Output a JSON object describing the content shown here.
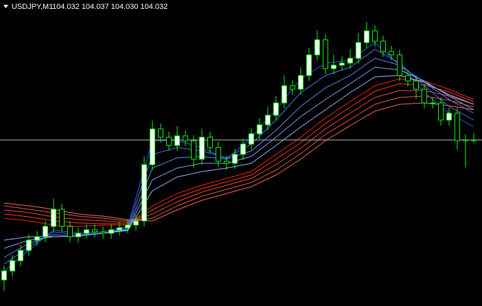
{
  "chart_data": {
    "type": "candlestick",
    "symbol": "USDJPY,M1",
    "ohlc_label": "104.032 104.037 104.030 104.032",
    "ylim": [
      103.911,
      104.134
    ],
    "background": "#000000",
    "up_color": "#ffffff",
    "down_color": "#000000",
    "wick_color": "#00ff00",
    "price_line_color": "#c0c0c0",
    "open": [
      103.93,
      103.9365,
      103.944,
      103.9515,
      103.959,
      103.9615,
      103.969,
      103.9815,
      103.969,
      103.9615,
      103.964,
      103.9665,
      103.965,
      103.964,
      103.9665,
      103.968,
      103.97,
      103.973,
      104.014,
      104.04,
      104.034,
      104.028,
      104.035,
      104.0315,
      104.018,
      104.034,
      104.0265,
      104.0165,
      104.015,
      104.0215,
      104.029,
      104.0365,
      104.043,
      104.05,
      104.059,
      104.0715,
      104.069,
      104.079,
      104.094,
      104.105,
      104.084,
      104.0865,
      104.088,
      104.0915,
      104.103,
      104.1115,
      104.104,
      104.0965,
      104.094,
      104.079,
      104.075,
      104.069,
      104.059,
      104.059,
      104.0465,
      104.0515,
      104.0315,
      104.032
    ],
    "high": [
      103.9405,
      103.948,
      103.9555,
      103.963,
      103.9655,
      103.973,
      103.989,
      103.9855,
      103.973,
      103.968,
      103.9705,
      103.9705,
      103.969,
      103.9705,
      103.972,
      103.974,
      103.977,
      104.02,
      104.046,
      104.044,
      104.038,
      104.042,
      104.039,
      104.0355,
      104.04,
      104.038,
      104.0305,
      104.0205,
      104.0255,
      104.033,
      104.0405,
      104.048,
      104.056,
      104.064,
      104.079,
      104.0755,
      104.085,
      104.099,
      104.112,
      104.109,
      104.094,
      104.093,
      104.098,
      104.11,
      104.118,
      104.1155,
      104.108,
      104.1005,
      104.098,
      104.083,
      104.079,
      104.073,
      104.063,
      104.063,
      104.0555,
      104.0555,
      104.036,
      104.037
    ],
    "low": [
      103.922,
      103.9325,
      103.94,
      103.9475,
      103.955,
      103.9575,
      103.965,
      103.965,
      103.9575,
      103.9575,
      103.96,
      103.961,
      103.96,
      103.96,
      103.9625,
      103.964,
      103.966,
      103.969,
      104.01,
      104.03,
      104.024,
      104.024,
      104.0275,
      104.012,
      104.014,
      104.0225,
      104.0125,
      104.01,
      104.011,
      104.0175,
      104.025,
      104.0325,
      104.039,
      104.046,
      104.055,
      104.065,
      104.065,
      104.075,
      104.09,
      104.08,
      104.08,
      104.0825,
      104.084,
      104.0875,
      104.099,
      104.1,
      104.0925,
      104.09,
      104.075,
      104.071,
      104.062,
      104.055,
      104.055,
      104.0425,
      104.0425,
      104.025,
      104.012,
      104.03
    ],
    "close": [
      103.9365,
      103.944,
      103.9515,
      103.959,
      103.9615,
      103.969,
      103.9815,
      103.969,
      103.9615,
      103.964,
      103.9665,
      103.965,
      103.964,
      103.9665,
      103.968,
      103.97,
      103.973,
      104.014,
      104.04,
      104.034,
      104.028,
      104.035,
      104.0315,
      104.018,
      104.034,
      104.0265,
      104.0165,
      104.015,
      104.0215,
      104.029,
      104.0365,
      104.043,
      104.05,
      104.059,
      104.0715,
      104.069,
      104.079,
      104.094,
      104.105,
      104.084,
      104.0865,
      104.088,
      104.0915,
      104.103,
      104.1115,
      104.104,
      104.0965,
      104.094,
      104.079,
      104.075,
      104.069,
      104.059,
      104.059,
      104.0465,
      104.0515,
      104.0315,
      104.032,
      104.032
    ],
    "series": [
      {
        "color": "#ff2200",
        "values": [
          103.975,
          103.973,
          103.97,
          103.969,
          103.97,
          103.97,
          103.984,
          103.993,
          103.999,
          104.004,
          104.009,
          104.0215,
          104.034,
          104.048,
          104.06,
          104.0715,
          104.0765,
          104.075,
          104.069,
          104.0615
        ]
      },
      {
        "color": "#ff3a20",
        "values": [
          103.978,
          103.976,
          103.973,
          103.9715,
          103.971,
          103.971,
          103.981,
          103.99,
          103.9965,
          104.0015,
          104.0065,
          104.018,
          104.03,
          104.044,
          104.056,
          104.0675,
          104.073,
          104.072,
          104.067,
          104.06
        ]
      },
      {
        "color": "#f04a38",
        "values": [
          103.981,
          103.979,
          103.976,
          103.974,
          103.973,
          103.972,
          103.978,
          103.987,
          103.994,
          103.999,
          104.004,
          104.014,
          104.026,
          104.04,
          104.0515,
          104.063,
          104.068,
          104.068,
          104.064,
          104.058
        ]
      },
      {
        "color": "#e85a48",
        "values": [
          103.984,
          103.9815,
          103.979,
          103.9765,
          103.975,
          103.973,
          103.975,
          103.984,
          103.991,
          103.996,
          104.001,
          104.01,
          104.022,
          104.036,
          104.047,
          104.058,
          104.063,
          104.064,
          104.061,
          104.056
        ]
      },
      {
        "color": "#ff6a50",
        "values": [
          103.986,
          103.984,
          103.9815,
          103.978,
          103.9765,
          103.974,
          103.973,
          103.981,
          103.988,
          103.993,
          103.998,
          104.0065,
          104.018,
          104.0315,
          104.0425,
          104.053,
          104.058,
          104.059,
          104.057,
          104.054
        ]
      },
      {
        "color": "#2f5cff",
        "values": [
          103.9365,
          103.9515,
          103.9665,
          103.964,
          103.965,
          103.969,
          104.0315,
          104.0315,
          104.0265,
          104.018,
          104.034,
          104.054,
          104.0765,
          104.088,
          104.09,
          104.103,
          104.0865,
          104.0665,
          104.0515,
          104.0415
        ]
      },
      {
        "color": "#4a74ff",
        "values": [
          103.9415,
          103.954,
          103.965,
          103.963,
          103.964,
          103.968,
          104.0215,
          104.0265,
          104.024,
          104.019,
          104.029,
          104.0465,
          104.0665,
          104.079,
          104.085,
          104.098,
          104.088,
          104.0715,
          104.0565,
          104.0465
        ]
      },
      {
        "color": "#638cff",
        "values": [
          103.9465,
          103.9565,
          103.963,
          103.962,
          103.964,
          103.967,
          104.0115,
          104.019,
          104.02,
          104.018,
          104.024,
          104.039,
          104.0565,
          104.07,
          104.079,
          104.0915,
          104.0865,
          104.074,
          104.0615,
          104.0515
        ]
      },
      {
        "color": "#7fa2ff",
        "values": [
          103.953,
          103.959,
          103.9615,
          103.962,
          103.964,
          103.9665,
          104.003,
          104.0115,
          104.015,
          104.015,
          104.02,
          104.034,
          104.049,
          104.0615,
          104.073,
          104.085,
          104.083,
          104.075,
          104.064,
          104.054
        ]
      },
      {
        "color": "#9cb8ff",
        "values": [
          103.959,
          103.9615,
          103.9615,
          103.962,
          103.964,
          103.966,
          103.995,
          104.005,
          104.009,
          104.0115,
          104.015,
          104.028,
          104.0415,
          104.054,
          104.0665,
          104.078,
          104.079,
          104.074,
          104.065,
          104.058
        ]
      }
    ]
  }
}
